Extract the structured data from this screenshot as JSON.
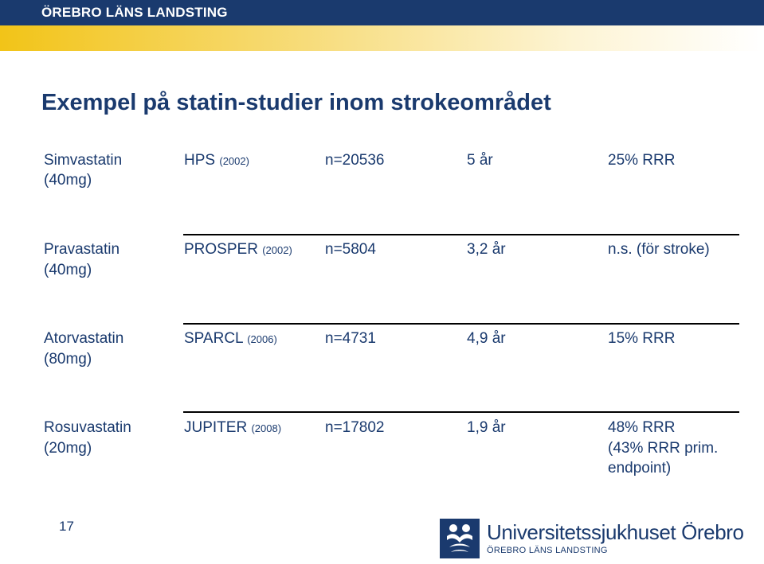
{
  "header": {
    "organization": "ÖREBRO LÄNS LANDSTING",
    "bar_color": "#1a3a6e",
    "gradient_color": "#f2c418"
  },
  "slide": {
    "title": "Exempel på statin-studier inom strokeområdet",
    "rows": [
      {
        "drug": "Simvastatin",
        "dose": "(40mg)",
        "study": "HPS",
        "year": "(2002)",
        "n": "n=20536",
        "duration": "5 år",
        "result": [
          "25% RRR"
        ]
      },
      {
        "drug": "Pravastatin",
        "dose": "(40mg)",
        "study": "PROSPER",
        "year": "(2002)",
        "n": "n=5804",
        "duration": "3,2 år",
        "result": [
          "n.s. (för stroke)"
        ]
      },
      {
        "drug": "Atorvastatin",
        "dose": "(80mg)",
        "study": "SPARCL",
        "year": "(2006)",
        "n": "n=4731",
        "duration": "4,9 år",
        "result": [
          "15% RRR"
        ]
      },
      {
        "drug": "Rosuvastatin",
        "dose": "(20mg)",
        "study": "JUPITER",
        "year": "(2008)",
        "n": "n=17802",
        "duration": "1,9 år",
        "result": [
          "48% RRR",
          "(43% RRR prim.",
          "endpoint)"
        ]
      }
    ]
  },
  "footer": {
    "page_number": "17",
    "logo_name": "Universitetssjukhuset Örebro",
    "logo_sub": "ÖREBRO LÄNS LANDSTING",
    "logo_icon": "people-emblem-icon"
  }
}
